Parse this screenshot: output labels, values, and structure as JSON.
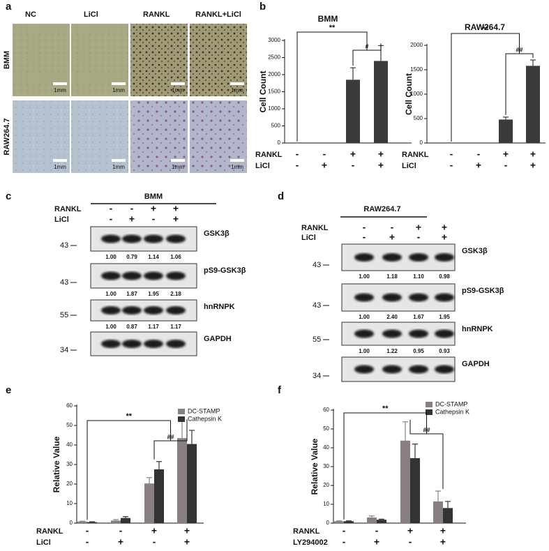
{
  "panel_labels": [
    "a",
    "b",
    "c",
    "d",
    "e",
    "f"
  ],
  "images": {
    "columns": [
      "NC",
      "LiCl",
      "RANKL",
      "RANKL+LiCl"
    ],
    "rows": [
      "BMM",
      "RAW264.7"
    ],
    "scale_bar": "1mm"
  },
  "chart_data": [
    {
      "type": "bar",
      "title": "BMM",
      "ylabel": "Cell Count",
      "categories": [
        null,
        null,
        null,
        null
      ],
      "values": [
        0,
        0,
        1850,
        2400
      ],
      "errors": [
        0,
        0,
        350,
        450
      ],
      "color": "#3a3a3a",
      "ylim": [
        0,
        3000
      ],
      "yticks": [
        0,
        500,
        1000,
        1500,
        2000,
        2500,
        3000
      ],
      "treatments": [
        {
          "name": "RANKL",
          "signs": [
            "-",
            "-",
            "+",
            "+"
          ]
        },
        {
          "name": "LiCl",
          "signs": [
            "-",
            "+",
            "-",
            "+"
          ]
        }
      ],
      "annotations": [
        "**",
        "#"
      ]
    },
    {
      "type": "bar",
      "title": "RAW264.7",
      "ylabel": "Cell Count",
      "categories": [
        null,
        null,
        null,
        null
      ],
      "values": [
        0,
        0,
        480,
        1580
      ],
      "errors": [
        0,
        0,
        50,
        120
      ],
      "color": "#3a3a3a",
      "ylim": [
        0,
        2000
      ],
      "yticks": [
        0,
        500,
        1000,
        1500,
        2000
      ],
      "treatments": [
        {
          "name": "RANKL",
          "signs": [
            "-",
            "-",
            "+",
            "+"
          ]
        },
        {
          "name": "LiCl",
          "signs": [
            "-",
            "+",
            "-",
            "+"
          ]
        }
      ],
      "annotations": [
        "**",
        "##"
      ]
    },
    {
      "type": "bar",
      "ylabel": "Relative Value",
      "categories": [
        null,
        null,
        null,
        null
      ],
      "series": [
        {
          "name": "DC-STAMP",
          "color": "#8a7f80",
          "values": [
            0.8,
            1.3,
            20.3,
            43.5
          ],
          "errors": [
            0.2,
            0.5,
            3,
            8.5
          ]
        },
        {
          "name": "Cathepsin K",
          "color": "#333333",
          "values": [
            0.5,
            2.6,
            27.5,
            40.5
          ],
          "errors": [
            0.2,
            0.7,
            4,
            7
          ]
        }
      ],
      "ylim": [
        0,
        60
      ],
      "yticks": [
        0,
        10,
        20,
        30,
        40,
        50,
        60
      ],
      "treatments": [
        {
          "name": "RANKL",
          "signs": [
            "-",
            "-",
            "+",
            "+"
          ]
        },
        {
          "name": "LiCl",
          "signs": [
            "-",
            "+",
            "-",
            "+"
          ]
        }
      ],
      "annotations": [
        "**",
        "##"
      ]
    },
    {
      "type": "bar",
      "ylabel": "Relative Value",
      "categories": [
        null,
        null,
        null,
        null
      ],
      "series": [
        {
          "name": "DC-STAMP",
          "color": "#8a7f80",
          "values": [
            1,
            3,
            43.8,
            11.5
          ],
          "errors": [
            0.2,
            0.8,
            10,
            5.5
          ]
        },
        {
          "name": "Cathepsin K",
          "color": "#333333",
          "values": [
            1,
            1.8,
            34.5,
            8
          ],
          "errors": [
            0.2,
            0.3,
            7.5,
            3.5
          ]
        }
      ],
      "ylim": [
        0,
        60
      ],
      "yticks": [
        0,
        10,
        20,
        30,
        40,
        50,
        60
      ],
      "treatments": [
        {
          "name": "RANKL",
          "signs": [
            "-",
            "-",
            "+",
            "+"
          ]
        },
        {
          "name": "LY294002",
          "signs": [
            "-",
            "+",
            "-",
            "+"
          ]
        }
      ],
      "annotations": [
        "**",
        "##"
      ]
    }
  ],
  "blots": [
    {
      "title": "BMM",
      "treatments": [
        {
          "name": "RANKL",
          "signs": [
            "-",
            "-",
            "+",
            "+"
          ]
        },
        {
          "name": "LiCl",
          "signs": [
            "-",
            "+",
            "-",
            "+"
          ]
        }
      ],
      "bands": [
        {
          "name": "GSK3β",
          "marker": "43",
          "quant": [
            "1.00",
            "0.79",
            "1.14",
            "1.06"
          ]
        },
        {
          "name": "pS9-GSK3β",
          "marker": "43",
          "quant": [
            "1.00",
            "1.87",
            "1.95",
            "2.18"
          ]
        },
        {
          "name": "hnRNPK",
          "marker": "55",
          "quant": [
            "1.00",
            "0.87",
            "1.17",
            "1.17"
          ]
        },
        {
          "name": "GAPDH",
          "marker": "34"
        }
      ]
    },
    {
      "title": "RAW264.7",
      "treatments": [
        {
          "name": "RANKL",
          "signs": [
            "-",
            "-",
            "+",
            "+"
          ]
        },
        {
          "name": "LiCl",
          "signs": [
            "-",
            "+",
            "-",
            "+"
          ]
        }
      ],
      "bands": [
        {
          "name": "GSK3β",
          "marker": "43",
          "quant": [
            "1.00",
            "1.18",
            "1.10",
            "0.98"
          ]
        },
        {
          "name": "pS9-GSK3β",
          "marker": "43",
          "quant": [
            "1.00",
            "2.40",
            "1.67",
            "1.95"
          ]
        },
        {
          "name": "hnRNPK",
          "marker": "55",
          "quant": [
            "1.00",
            "1.22",
            "0.95",
            "0.93"
          ]
        },
        {
          "name": "GAPDH",
          "marker": "34"
        }
      ]
    }
  ]
}
